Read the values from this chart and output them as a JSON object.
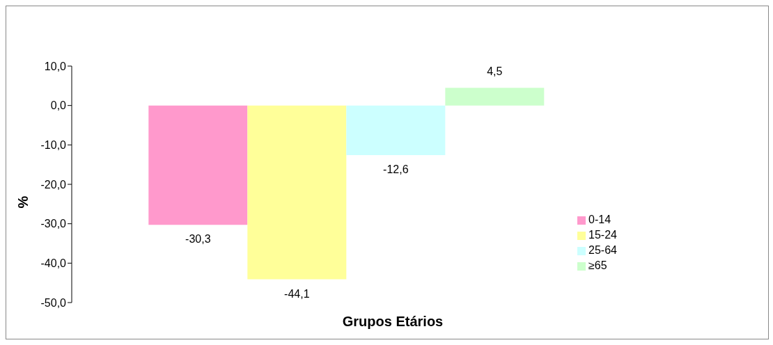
{
  "chart_data": {
    "type": "bar",
    "xlabel": "Grupos Etários",
    "ylabel": "%",
    "categories": [
      null
    ],
    "series": [
      {
        "name": "0-14",
        "color": "#ff99cc",
        "values": [
          -30.3
        ],
        "value_labels": [
          "-30,3"
        ]
      },
      {
        "name": "15-24",
        "color": "#ffff99",
        "values": [
          -44.1
        ],
        "value_labels": [
          "-44,1"
        ]
      },
      {
        "name": "25-64",
        "color": "#ccffff",
        "values": [
          -12.6
        ],
        "value_labels": [
          "-12,6"
        ]
      },
      {
        "name": "≥65",
        "color": "#ccffcc",
        "values": [
          4.5
        ],
        "value_labels": [
          "4,5"
        ]
      }
    ],
    "ylim": [
      -50,
      10
    ],
    "yticks": [
      {
        "value": -50,
        "label": "-50,0"
      },
      {
        "value": -40,
        "label": "-40,0"
      },
      {
        "value": -30,
        "label": "-30,0"
      },
      {
        "value": -20,
        "label": "-20,0"
      },
      {
        "value": -10,
        "label": "-10,0"
      },
      {
        "value": 0,
        "label": "0,0"
      },
      {
        "value": 10,
        "label": "10,0"
      }
    ],
    "grid": false,
    "legend": "right"
  }
}
